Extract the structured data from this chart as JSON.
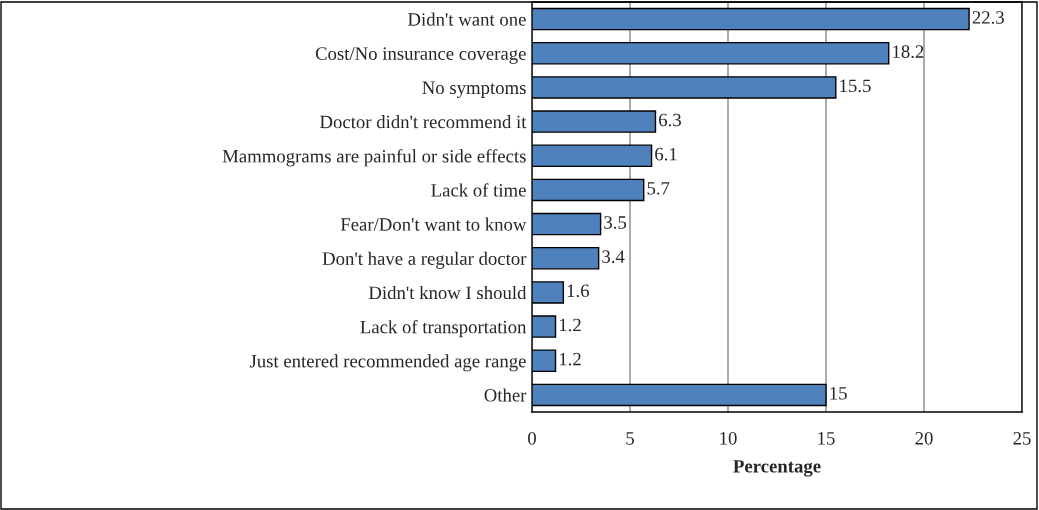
{
  "chart_data": {
    "type": "bar",
    "orientation": "horizontal",
    "xlabel": "Percentage",
    "categories": [
      "Didn't want one",
      "Cost/No insurance coverage",
      "No symptoms",
      "Doctor didn't recommend it",
      "Mammograms are painful or side effects",
      "Lack of time",
      "Fear/Don't want to know",
      "Don't have a regular doctor",
      "Didn't know I should",
      "Lack of transportation",
      "Just entered recommended age range",
      "Other"
    ],
    "values": [
      22.3,
      18.2,
      15.5,
      6.3,
      6.1,
      5.7,
      3.5,
      3.4,
      1.6,
      1.2,
      1.2,
      15
    ],
    "color": "#4f81bd",
    "xlim": [
      0,
      25
    ],
    "xticks": [
      0,
      5,
      10,
      15,
      20,
      25
    ],
    "grid": "x",
    "data_labels": true
  }
}
